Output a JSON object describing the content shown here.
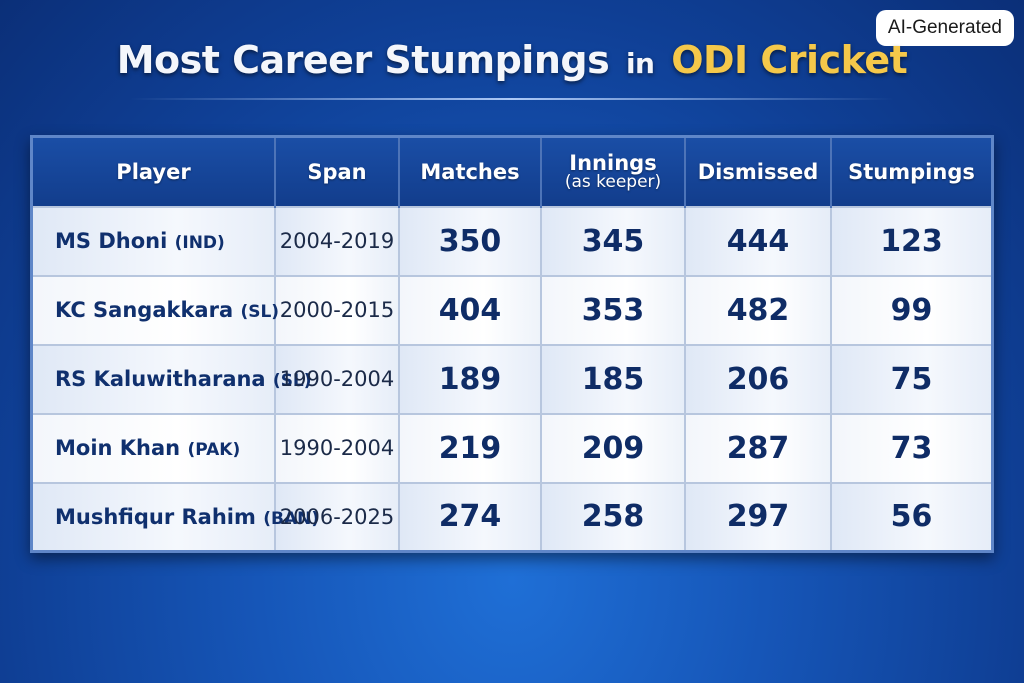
{
  "badge": "AI-Generated",
  "title": {
    "part1": "Most Career Stumpings",
    "part2": "in",
    "part3": "ODI Cricket"
  },
  "colors": {
    "accent": "#f5c84a",
    "header_bg": "#123d8c",
    "background": "#1656b8"
  },
  "chart_data": {
    "type": "table",
    "title": "Most Career Stumpings in ODI Cricket",
    "columns": [
      {
        "label": "Player",
        "sub": ""
      },
      {
        "label": "Span",
        "sub": ""
      },
      {
        "label": "Matches",
        "sub": ""
      },
      {
        "label": "Innings",
        "sub": "(as keeper)"
      },
      {
        "label": "Dismissed",
        "sub": ""
      },
      {
        "label": "Stumpings",
        "sub": ""
      }
    ],
    "rows": [
      {
        "player": "MS Dhoni",
        "country": "(IND)",
        "span": "2004-2019",
        "matches": "350",
        "innings": "345",
        "dismissed": "444",
        "stumpings": "123"
      },
      {
        "player": "KC Sangakkara",
        "country": "(SL)",
        "span": "2000-2015",
        "matches": "404",
        "innings": "353",
        "dismissed": "482",
        "stumpings": "99"
      },
      {
        "player": "RS Kaluwitharana",
        "country": "(SL)",
        "span": "1990-2004",
        "matches": "189",
        "innings": "185",
        "dismissed": "206",
        "stumpings": "75"
      },
      {
        "player": "Moin Khan",
        "country": "(PAK)",
        "span": "1990-2004",
        "matches": "219",
        "innings": "209",
        "dismissed": "287",
        "stumpings": "73"
      },
      {
        "player": "Mushfiqur Rahim",
        "country": "(BAN)",
        "span": "2006-2025",
        "matches": "274",
        "innings": "258",
        "dismissed": "297",
        "stumpings": "56"
      }
    ]
  }
}
